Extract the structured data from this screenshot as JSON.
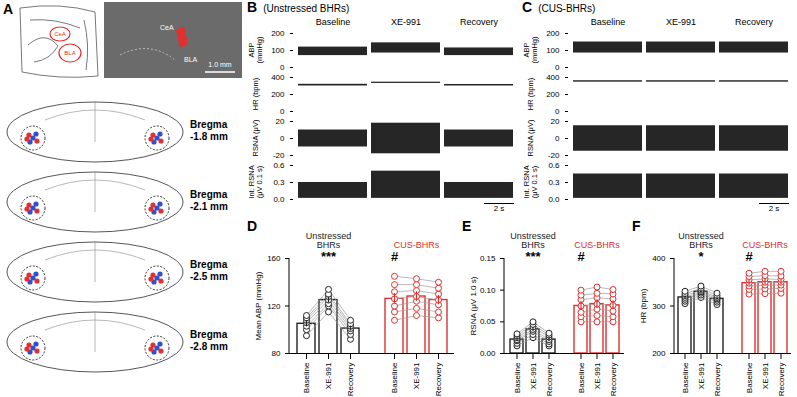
{
  "panel_A": {
    "label": "A",
    "atlas_labels": [
      "CeA",
      "BLA"
    ],
    "photo_labels": [
      "CeA",
      "BLA"
    ],
    "scale_bar": "1.0 mm",
    "sections": [
      "Bregma -1.8 mm",
      "Bregma -2.1 mm",
      "Bregma -2.5 mm",
      "Bregma -2.8 mm"
    ]
  },
  "chart_data": [
    {
      "type": "trace_range",
      "panel": "B",
      "title": "(Unstressed BHRs)",
      "categories": [
        "Baseline",
        "XE-991",
        "Recovery"
      ],
      "color": "#000000",
      "scale_bar": "2 s",
      "rows": [
        {
          "ylabel": "ABP (mmHg)",
          "ylim": [
            0,
            200
          ],
          "yticks": [
            0,
            100,
            200
          ],
          "low": [
            70,
            85,
            70
          ],
          "high": [
            120,
            145,
            115
          ]
        },
        {
          "ylabel": "HR (bpm)",
          "ylim": [
            0,
            400
          ],
          "yticks": [
            0,
            200,
            400
          ],
          "low": [
            300,
            330,
            300
          ],
          "high": [
            320,
            345,
            318
          ]
        },
        {
          "ylabel": "RSNA (μV)",
          "ylim": [
            -20,
            20
          ],
          "yticks": [
            -20,
            0,
            20
          ],
          "low": [
            -10,
            -18,
            -10
          ],
          "high": [
            10,
            18,
            10
          ]
        },
        {
          "ylabel": "Int. RSNA (μV 0.1 s)",
          "ylim": [
            0,
            0.6
          ],
          "yticks": [
            {
              "value": 0,
              "label": "0.0"
            },
            {
              "value": 0.3,
              "label": "0.3"
            },
            {
              "value": 0.6,
              "label": "0.6"
            }
          ],
          "low": [
            0.02,
            0.02,
            0.02
          ],
          "high": [
            0.3,
            0.5,
            0.3
          ]
        }
      ]
    },
    {
      "type": "trace_range",
      "panel": "C",
      "title": "(CUS-BHRs)",
      "categories": [
        "Baseline",
        "XE-991",
        "Recovery"
      ],
      "color": "#000000",
      "scale_bar": "2 s",
      "rows": [
        {
          "ylabel": "ABP (mmHg)",
          "ylim": [
            0,
            200
          ],
          "yticks": [
            0,
            100,
            200
          ],
          "low": [
            85,
            85,
            85
          ],
          "high": [
            150,
            150,
            150
          ]
        },
        {
          "ylabel": "HR (bpm)",
          "ylim": [
            0,
            400
          ],
          "yticks": [
            0,
            200,
            400
          ],
          "low": [
            345,
            345,
            345
          ],
          "high": [
            362,
            362,
            362
          ]
        },
        {
          "ylabel": "RSNA (μV)",
          "ylim": [
            -20,
            20
          ],
          "yticks": [
            -20,
            0,
            20
          ],
          "low": [
            -15,
            -15,
            -15
          ],
          "high": [
            15,
            15,
            15
          ]
        },
        {
          "ylabel": "Int. RSNA (μV 0.1 s)",
          "ylim": [
            0,
            0.6
          ],
          "yticks": [
            {
              "value": 0,
              "label": "0.0"
            },
            {
              "value": 0.3,
              "label": "0.3"
            },
            {
              "value": 0.6,
              "label": "0.6"
            }
          ],
          "low": [
            0.02,
            0.02,
            0.02
          ],
          "high": [
            0.45,
            0.45,
            0.45
          ]
        }
      ]
    },
    {
      "type": "bar",
      "panel": "D",
      "ylabel": "Mean ABP (mmHg)",
      "ylim": [
        80,
        160
      ],
      "yticks": [
        80,
        120,
        160
      ],
      "categories": [
        "Baseline",
        "XE-991",
        "Recovery"
      ],
      "series": [
        {
          "name": "Unstressed BHRs",
          "color": "#222222",
          "values": [
            105,
            125,
            101
          ],
          "errors": [
            2.5,
            2.5,
            2.0
          ],
          "points": [
            [
              95,
              100,
              103,
              106,
              108,
              110,
              112
            ],
            [
              115,
              120,
              122,
              125,
              128,
              130,
              134
            ],
            [
              92,
              96,
              99,
              101,
              103,
              105,
              108
            ]
          ],
          "annotations": [
            null,
            "***",
            null
          ]
        },
        {
          "name": "CUS-BHRs",
          "color": "#e0302f",
          "values": [
            126,
            128,
            125
          ],
          "errors": [
            4.5,
            4,
            4
          ],
          "points": [
            [
              108,
              115,
              120,
              126,
              132,
              138,
              145
            ],
            [
              112,
              118,
              124,
              128,
              133,
              138,
              143
            ],
            [
              110,
              115,
              121,
              125,
              130,
              135,
              140
            ]
          ],
          "annotations": [
            "#",
            null,
            null
          ]
        }
      ]
    },
    {
      "type": "bar",
      "panel": "E",
      "ylabel": "RSNA (μV 1.0 s)",
      "ylim": [
        0,
        0.15
      ],
      "yticks": [
        {
          "value": 0,
          "label": "0.00"
        },
        {
          "value": 0.05,
          "label": "0.05"
        },
        {
          "value": 0.1,
          "label": "0.10"
        },
        {
          "value": 0.15,
          "label": "0.15"
        }
      ],
      "categories": [
        "Baseline",
        "XE-991",
        "Recovery"
      ],
      "series": [
        {
          "name": "Unstressed BHRs",
          "color": "#222222",
          "values": [
            0.022,
            0.038,
            0.022
          ],
          "errors": [
            0.003,
            0.003,
            0.003
          ],
          "points": [
            [
              0.012,
              0.016,
              0.02,
              0.022,
              0.025,
              0.028,
              0.031
            ],
            [
              0.025,
              0.03,
              0.035,
              0.038,
              0.042,
              0.046,
              0.05
            ],
            [
              0.012,
              0.015,
              0.019,
              0.022,
              0.026,
              0.029,
              0.032
            ]
          ],
          "annotations": [
            null,
            "***",
            null
          ]
        },
        {
          "name": "CUS-BHRs",
          "color": "#e0302f",
          "values": [
            0.075,
            0.078,
            0.076
          ],
          "errors": [
            0.007,
            0.007,
            0.007
          ],
          "points": [
            [
              0.05,
              0.058,
              0.065,
              0.075,
              0.085,
              0.092,
              0.1
            ],
            [
              0.05,
              0.06,
              0.07,
              0.078,
              0.088,
              0.095,
              0.105
            ],
            [
              0.05,
              0.058,
              0.067,
              0.076,
              0.086,
              0.094,
              0.101
            ]
          ],
          "annotations": [
            "#",
            null,
            null
          ]
        }
      ]
    },
    {
      "type": "bar",
      "panel": "F",
      "ylabel": "HR (bpm)",
      "ylim": [
        200,
        400
      ],
      "yticks": [
        200,
        300,
        400
      ],
      "categories": [
        "Baseline",
        "XE-991",
        "Recovery"
      ],
      "series": [
        {
          "name": "Unstressed BHRs",
          "color": "#222222",
          "values": [
            318,
            330,
            315
          ],
          "errors": [
            3,
            3,
            3
          ],
          "points": [
            [
              305,
              310,
              314,
              318,
              322,
              326,
              331
            ],
            [
              318,
              323,
              327,
              330,
              333,
              337,
              342
            ],
            [
              303,
              308,
              312,
              315,
              318,
              322,
              327
            ]
          ],
          "annotations": [
            null,
            "*",
            null
          ]
        },
        {
          "name": "CUS-BHRs",
          "color": "#e0302f",
          "values": [
            348,
            350,
            350
          ],
          "errors": [
            6,
            6,
            6
          ],
          "points": [
            [
              325,
              335,
              342,
              348,
              355,
              362,
              369
            ],
            [
              326,
              336,
              344,
              350,
              357,
              364,
              373
            ],
            [
              327,
              337,
              344,
              350,
              356,
              363,
              373
            ]
          ],
          "annotations": [
            "#",
            null,
            null
          ]
        }
      ]
    }
  ]
}
